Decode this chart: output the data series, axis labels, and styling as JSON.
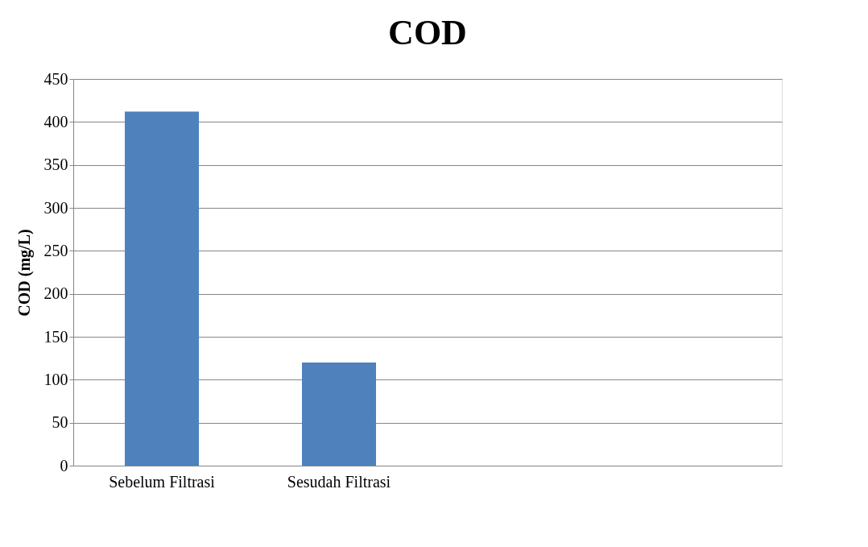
{
  "chart_data": {
    "type": "bar",
    "title": "COD",
    "ylabel": "COD (mg/L)",
    "categories": [
      "Sebelum Filtrasi",
      "Sesudah Filtrasi",
      null,
      null
    ],
    "values": [
      412,
      120,
      null,
      null
    ],
    "color": "#4f81bd",
    "ylim": [
      0,
      450
    ],
    "yticks": [
      0,
      50,
      100,
      150,
      200,
      250,
      300,
      350,
      400,
      450
    ],
    "grid": "y"
  }
}
